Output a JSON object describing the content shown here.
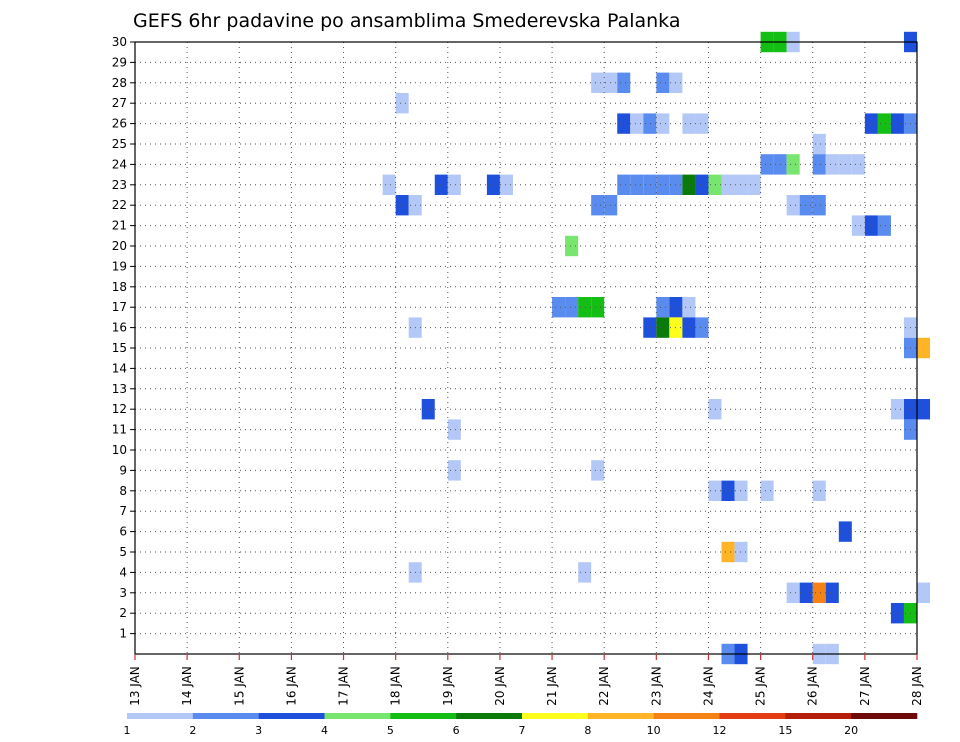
{
  "chart_data": {
    "type": "heatmap",
    "title": "GEFS 6hr padavine po ansamblima Smederevska Palanka",
    "x_tick_labels": [
      "13 JAN",
      "14 JAN",
      "15 JAN",
      "16 JAN",
      "17 JAN",
      "18 JAN",
      "19 JAN",
      "20 JAN",
      "21 JAN",
      "22 JAN",
      "23 JAN",
      "24 JAN",
      "25 JAN",
      "26 JAN",
      "27 JAN",
      "28 JAN"
    ],
    "y_tick_labels": [
      "1",
      "2",
      "3",
      "4",
      "5",
      "6",
      "7",
      "8",
      "9",
      "10",
      "11",
      "12",
      "13",
      "14",
      "15",
      "16",
      "17",
      "18",
      "19",
      "20",
      "21",
      "22",
      "23",
      "24",
      "25",
      "26",
      "27",
      "28",
      "29",
      "30"
    ],
    "time_step_hours": 6,
    "y_range": [
      0,
      30
    ],
    "grid": true,
    "colorbar": {
      "labels": [
        "1",
        "2",
        "3",
        "4",
        "5",
        "6",
        "7",
        "8",
        "10",
        "12",
        "15",
        "20"
      ],
      "colors": [
        "#b4c8f8",
        "#5a8cf0",
        "#1e50dc",
        "#78e66e",
        "#14be14",
        "#0a7a0a",
        "#ffff1e",
        "#ffb428",
        "#f58214",
        "#e63c14",
        "#b41e0a",
        "#6e0a0a"
      ]
    },
    "cells_note": "each cell: [x_day_fraction_from_13JAN, member, value_mm]",
    "cells": [
      [
        12.0,
        30,
        5
      ],
      [
        12.25,
        30,
        5
      ],
      [
        12.5,
        30,
        1
      ],
      [
        14.75,
        30,
        3
      ],
      [
        8.75,
        28,
        1
      ],
      [
        9.0,
        28,
        1
      ],
      [
        9.25,
        28,
        2
      ],
      [
        10.0,
        28,
        2
      ],
      [
        10.25,
        28,
        1
      ],
      [
        5.0,
        27,
        1
      ],
      [
        9.25,
        26,
        3
      ],
      [
        9.5,
        26,
        1
      ],
      [
        9.75,
        26,
        2
      ],
      [
        10.0,
        26,
        1
      ],
      [
        10.5,
        26,
        1
      ],
      [
        10.75,
        26,
        1
      ],
      [
        14.0,
        26,
        3
      ],
      [
        14.25,
        26,
        5
      ],
      [
        14.5,
        26,
        3
      ],
      [
        14.75,
        26,
        2
      ],
      [
        13.0,
        25,
        1
      ],
      [
        12.0,
        24,
        2
      ],
      [
        12.25,
        24,
        2
      ],
      [
        12.5,
        24,
        4
      ],
      [
        13.0,
        24,
        2
      ],
      [
        13.25,
        24,
        1
      ],
      [
        13.5,
        24,
        1
      ],
      [
        13.75,
        24,
        1
      ],
      [
        4.75,
        23,
        1
      ],
      [
        5.75,
        23,
        3
      ],
      [
        6.0,
        23,
        1
      ],
      [
        6.75,
        23,
        3
      ],
      [
        7.0,
        23,
        1
      ],
      [
        9.25,
        23,
        2
      ],
      [
        9.5,
        23,
        2
      ],
      [
        9.75,
        23,
        2
      ],
      [
        10.0,
        23,
        2
      ],
      [
        10.25,
        23,
        2
      ],
      [
        10.5,
        23,
        6
      ],
      [
        10.75,
        23,
        3
      ],
      [
        11.0,
        23,
        4
      ],
      [
        11.25,
        23,
        1
      ],
      [
        11.5,
        23,
        1
      ],
      [
        11.75,
        23,
        1
      ],
      [
        5.0,
        22,
        3
      ],
      [
        5.25,
        22,
        1
      ],
      [
        8.75,
        22,
        2
      ],
      [
        9.0,
        22,
        2
      ],
      [
        12.5,
        22,
        1
      ],
      [
        12.75,
        22,
        2
      ],
      [
        13.0,
        22,
        2
      ],
      [
        13.75,
        21,
        1
      ],
      [
        14.0,
        21,
        3
      ],
      [
        14.25,
        21,
        2
      ],
      [
        8.25,
        20,
        4
      ],
      [
        8.0,
        17,
        2
      ],
      [
        8.25,
        17,
        2
      ],
      [
        8.5,
        17,
        5
      ],
      [
        8.75,
        17,
        5
      ],
      [
        10.0,
        17,
        2
      ],
      [
        10.25,
        17,
        3
      ],
      [
        10.5,
        17,
        1
      ],
      [
        9.75,
        16,
        3
      ],
      [
        10.0,
        16,
        6
      ],
      [
        10.25,
        16,
        7
      ],
      [
        10.5,
        16,
        3
      ],
      [
        10.75,
        16,
        2
      ],
      [
        5.25,
        16,
        1
      ],
      [
        14.75,
        16,
        1
      ],
      [
        14.75,
        15,
        2
      ],
      [
        15.0,
        15,
        8
      ],
      [
        11.0,
        12,
        1
      ],
      [
        14.5,
        12,
        1
      ],
      [
        14.75,
        12,
        3
      ],
      [
        5.5,
        12,
        3
      ],
      [
        15.0,
        12,
        3
      ],
      [
        6.0,
        11,
        1
      ],
      [
        14.75,
        11,
        2
      ],
      [
        6.0,
        9,
        1
      ],
      [
        8.75,
        9,
        1
      ],
      [
        11.0,
        8,
        1
      ],
      [
        11.25,
        8,
        3
      ],
      [
        11.5,
        8,
        1
      ],
      [
        12.0,
        8,
        1
      ],
      [
        13.0,
        8,
        1
      ],
      [
        13.5,
        6,
        3
      ],
      [
        11.25,
        5,
        8
      ],
      [
        11.5,
        5,
        1
      ],
      [
        5.25,
        4,
        1
      ],
      [
        8.5,
        4,
        1
      ],
      [
        12.5,
        3,
        1
      ],
      [
        12.75,
        3,
        3
      ],
      [
        13.0,
        3,
        9
      ],
      [
        13.25,
        3,
        3
      ],
      [
        15.0,
        3,
        1
      ],
      [
        14.5,
        2,
        3
      ],
      [
        14.75,
        2,
        5
      ],
      [
        11.25,
        0,
        2
      ],
      [
        11.5,
        0,
        3
      ],
      [
        13.0,
        0,
        1
      ],
      [
        13.25,
        0,
        1
      ]
    ]
  }
}
